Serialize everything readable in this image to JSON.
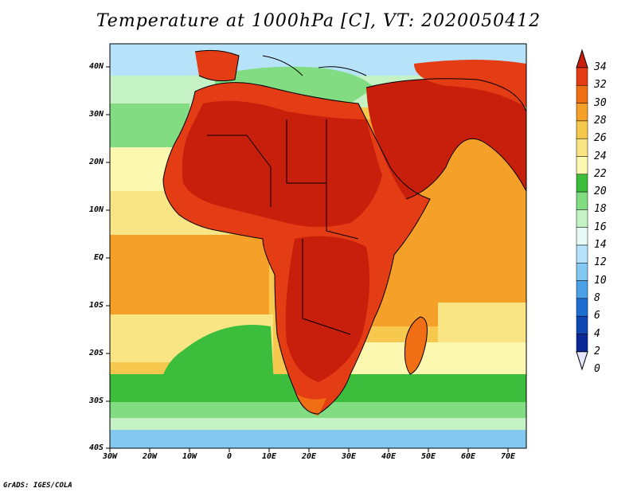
{
  "title": "Temperature at 1000hPa [C], VT: 2020050412",
  "credit": "GrADS: IGES/COLA",
  "lat_labels": [
    "40N",
    "30N",
    "20N",
    "10N",
    "EQ",
    "10S",
    "20S",
    "30S",
    "40S"
  ],
  "lon_labels": [
    "30W",
    "20W",
    "10W",
    "0",
    "10E",
    "20E",
    "30E",
    "40E",
    "50E",
    "60E",
    "70E"
  ],
  "colorbar": {
    "levels": [
      "34",
      "32",
      "30",
      "28",
      "26",
      "24",
      "22",
      "20",
      "18",
      "16",
      "14",
      "12",
      "10",
      "8",
      "6",
      "4",
      "2",
      "0"
    ],
    "colors": [
      "#c81e0c",
      "#e43c14",
      "#f06e14",
      "#f5a028",
      "#f7c84e",
      "#fae584",
      "#fdf8b0",
      "#3cbe3c",
      "#82dc82",
      "#c4f2c4",
      "#e6fbf6",
      "#b6e3fa",
      "#82c8f0",
      "#4ba0e6",
      "#1e6ed2",
      "#0f46b4",
      "#0a2896",
      "#081478"
    ]
  }
}
